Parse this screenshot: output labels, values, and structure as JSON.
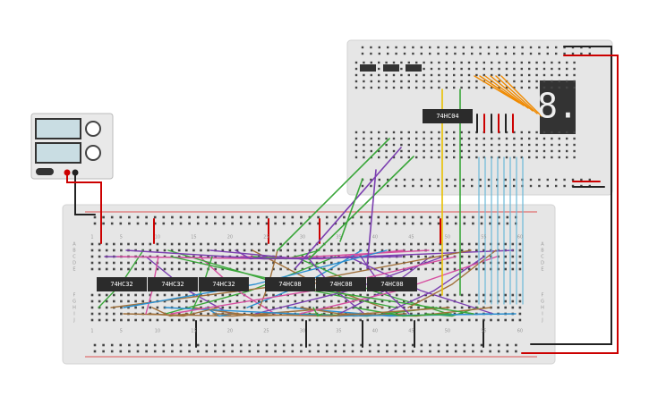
{
  "power_supply": {
    "display_top": "",
    "display_bottom": ""
  },
  "bottom_board": {
    "column_numbers_top": [
      "1",
      "5",
      "10",
      "15",
      "20",
      "25",
      "30",
      "35",
      "40",
      "45",
      "50",
      "55",
      "60"
    ],
    "column_numbers_bottom": [
      "1",
      "5",
      "10",
      "15",
      "20",
      "25",
      "30",
      "35",
      "40",
      "45",
      "50",
      "55",
      "60"
    ],
    "row_letters_left": [
      "A",
      "B",
      "C",
      "D",
      "E",
      "F",
      "G",
      "H",
      "I",
      "J"
    ],
    "row_letters_right": [
      "A",
      "B",
      "C",
      "D",
      "E",
      "F",
      "G",
      "H",
      "I",
      "J"
    ]
  },
  "chips": [
    {
      "label": "74HC32"
    },
    {
      "label": "74HC32"
    },
    {
      "label": "74HC32"
    },
    {
      "label": "74HC08"
    },
    {
      "label": "74HC08"
    },
    {
      "label": "74HC08"
    }
  ],
  "top_chip": {
    "label": "74HC04"
  },
  "display": {
    "digit": "8."
  }
}
